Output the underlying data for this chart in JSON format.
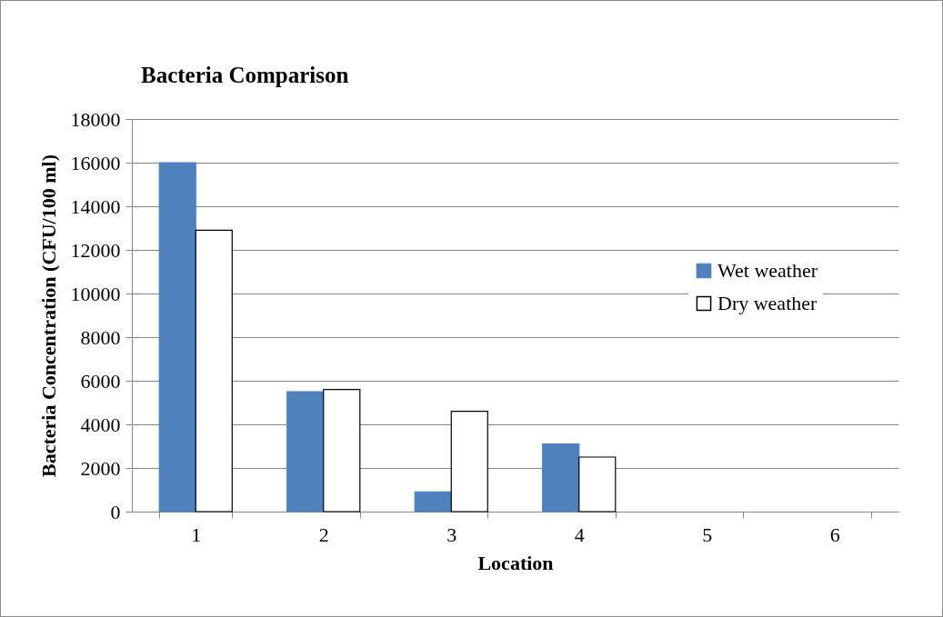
{
  "chart_data": {
    "type": "bar",
    "title": "Bacteria Comparison",
    "xlabel": "Location",
    "ylabel": "Bacteria Concentration (CFU/100 ml)",
    "categories": [
      "1",
      "2",
      "3",
      "4",
      "5",
      "6"
    ],
    "series": [
      {
        "name": "Wet weather",
        "color": "#4f81bd",
        "values": [
          16000,
          5500,
          900,
          3100,
          null,
          null
        ]
      },
      {
        "name": "Dry weather",
        "color": "#ffffff",
        "values": [
          12900,
          5600,
          4600,
          2500,
          null,
          null
        ]
      }
    ],
    "ylim": [
      0,
      18000
    ],
    "yticks": [
      0,
      2000,
      4000,
      6000,
      8000,
      10000,
      12000,
      14000,
      16000,
      18000
    ],
    "grid": "y",
    "legend": "right"
  }
}
